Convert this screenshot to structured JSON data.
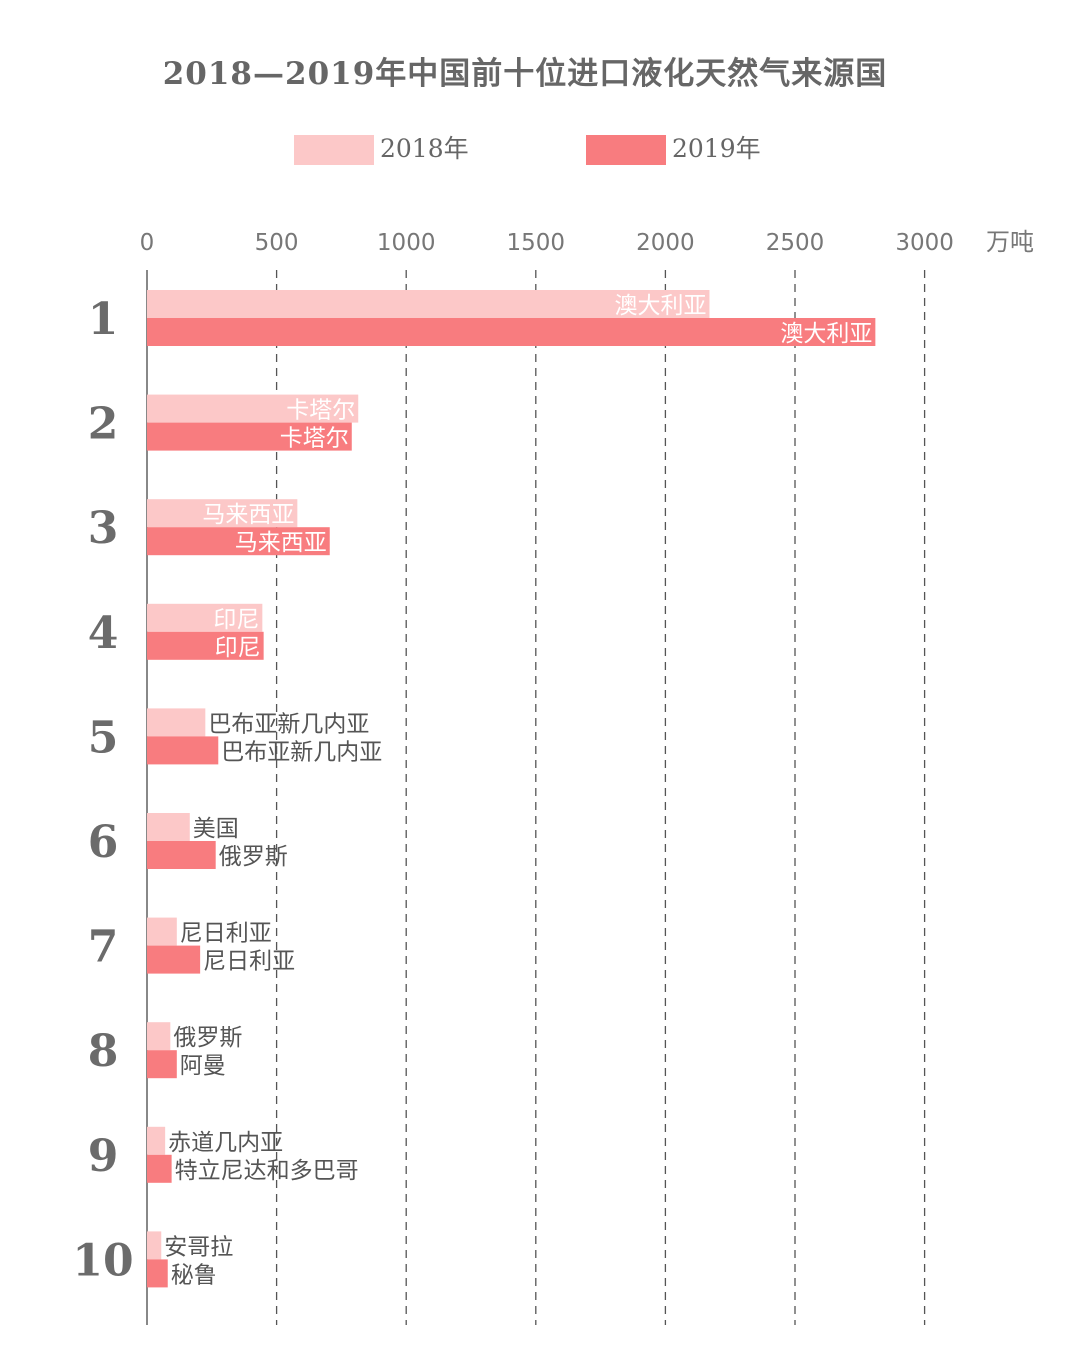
{
  "chart_data": {
    "type": "bar",
    "orientation": "horizontal",
    "title": "2018—2019年中国前十位进口液化天然气来源国",
    "unit": "万吨",
    "xlim": [
      0,
      3000
    ],
    "x_ticks": [
      "0",
      "500",
      "1000",
      "1500",
      "2000",
      "2500",
      "3000"
    ],
    "grid": "dashed vertical",
    "legend_position": "top",
    "colors": {
      "2018": "#fcc8c8",
      "2019": "#f87c7f",
      "axis": "#888888",
      "grid": "#555555"
    },
    "series": [
      {
        "name": "2018年",
        "values": [
          2170,
          815,
          580,
          445,
          225,
          165,
          115,
          90,
          70,
          55
        ]
      },
      {
        "name": "2019年",
        "values": [
          2810,
          790,
          705,
          450,
          275,
          265,
          205,
          115,
          95,
          80
        ]
      }
    ],
    "ranks": [
      "1",
      "2",
      "3",
      "4",
      "5",
      "6",
      "7",
      "8",
      "9",
      "10"
    ],
    "labels_2018": [
      "澳大利亚",
      "卡塔尔",
      "马来西亚",
      "印尼",
      "巴布亚新几内亚",
      "美国",
      "尼日利亚",
      "俄罗斯",
      "赤道几内亚",
      "安哥拉"
    ],
    "labels_2019": [
      "澳大利亚",
      "卡塔尔",
      "马来西亚",
      "印尼",
      "巴布亚新几内亚",
      "俄罗斯",
      "尼日利亚",
      "阿曼",
      "特立尼达和多巴哥",
      "秘鲁"
    ],
    "labels_inside": [
      true,
      true,
      true,
      true,
      false,
      false,
      false,
      false,
      false,
      false
    ]
  }
}
